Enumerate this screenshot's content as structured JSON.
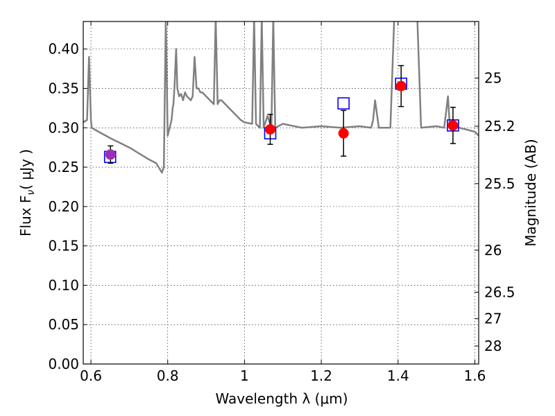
{
  "chart_data": {
    "type": "scatter",
    "xlabel": "Wavelength  λ (μm)",
    "ylabel": "Flux  F",
    "ylabel_sub": "ν",
    "ylabel_units": "( μJy )",
    "y2label": "Magnitude (AB)",
    "xlim": [
      0.58,
      1.61
    ],
    "ylim": [
      0.0,
      0.435
    ],
    "xticks": [
      0.6,
      0.8,
      1.0,
      1.2,
      1.4,
      1.6
    ],
    "xtick_labels": [
      "0.6",
      "0.8",
      "1",
      "1.2",
      "1.4",
      "1.6"
    ],
    "yticks": [
      0.0,
      0.05,
      0.1,
      0.15,
      0.2,
      0.25,
      0.3,
      0.35,
      0.4
    ],
    "ytick_labels": [
      "0.00",
      "0.05",
      "0.10",
      "0.15",
      "0.20",
      "0.25",
      "0.30",
      "0.35",
      "0.40"
    ],
    "y2ticks": [
      {
        "label": "25",
        "flux": 0.3631
      },
      {
        "label": "25.2",
        "flux": 0.302
      },
      {
        "label": "25.5",
        "flux": 0.2291
      },
      {
        "label": "26",
        "flux": 0.1445
      },
      {
        "label": "26.5",
        "flux": 0.0912
      },
      {
        "label": "27",
        "flux": 0.0575
      },
      {
        "label": "28",
        "flux": 0.0229
      }
    ],
    "grid": true,
    "series": [
      {
        "kind": "line",
        "color": "#808080",
        "x": [
          0.58,
          0.59,
          0.595,
          0.6,
          0.602,
          0.62,
          0.65,
          0.7,
          0.75,
          0.77,
          0.78,
          0.785,
          0.79,
          0.795,
          0.8,
          0.81,
          0.813,
          0.815,
          0.818,
          0.822,
          0.825,
          0.83,
          0.835,
          0.84,
          0.845,
          0.85,
          0.86,
          0.865,
          0.87,
          0.875,
          0.88,
          0.885,
          0.89,
          0.92,
          0.925,
          0.93,
          0.935,
          0.94,
          0.97,
          0.98,
          0.99,
          1.0,
          1.02,
          1.025,
          1.03,
          1.04,
          1.045,
          1.05,
          1.06,
          1.07,
          1.075,
          1.08,
          1.1,
          1.15,
          1.2,
          1.25,
          1.3,
          1.33,
          1.335,
          1.34,
          1.35,
          1.36,
          1.38,
          1.39,
          1.4,
          1.41,
          1.42,
          1.43,
          1.44,
          1.45,
          1.46,
          1.5,
          1.52,
          1.525,
          1.53,
          1.535,
          1.545,
          1.56,
          1.6,
          1.61
        ],
        "y": [
          0.307,
          0.31,
          0.39,
          0.31,
          0.3,
          0.295,
          0.287,
          0.275,
          0.26,
          0.255,
          0.247,
          0.243,
          0.25,
          0.44,
          0.29,
          0.31,
          0.325,
          0.33,
          0.355,
          0.4,
          0.35,
          0.34,
          0.343,
          0.335,
          0.345,
          0.34,
          0.335,
          0.34,
          0.39,
          0.35,
          0.35,
          0.345,
          0.345,
          0.33,
          0.44,
          0.33,
          0.335,
          0.335,
          0.32,
          0.315,
          0.31,
          0.307,
          0.305,
          0.44,
          0.305,
          0.3,
          0.44,
          0.3,
          0.315,
          0.3,
          0.44,
          0.3,
          0.305,
          0.3,
          0.302,
          0.3,
          0.302,
          0.3,
          0.31,
          0.335,
          0.3,
          0.3,
          0.3,
          0.44,
          0.44,
          0.44,
          0.44,
          0.44,
          0.44,
          0.44,
          0.3,
          0.302,
          0.3,
          0.32,
          0.34,
          0.3,
          0.3,
          0.3,
          0.295,
          0.29
        ]
      },
      {
        "kind": "model-photometry",
        "marker": "open-square",
        "color": "#0000ff",
        "x": [
          0.65,
          1.067,
          1.258,
          1.408,
          1.543
        ],
        "y": [
          0.263,
          0.293,
          0.331,
          0.356,
          0.303
        ]
      },
      {
        "kind": "observed",
        "marker": "filled-circle",
        "colors": [
          "#9b30b0",
          "#ff0000",
          "#ff0000",
          "#ff0000",
          "#ff0000"
        ],
        "x": [
          0.651,
          1.067,
          1.258,
          1.408,
          1.543
        ],
        "y": [
          0.266,
          0.298,
          0.293,
          0.353,
          0.303
        ],
        "yerr": [
          0.011,
          0.019,
          0.029,
          0.026,
          0.023
        ]
      }
    ]
  }
}
